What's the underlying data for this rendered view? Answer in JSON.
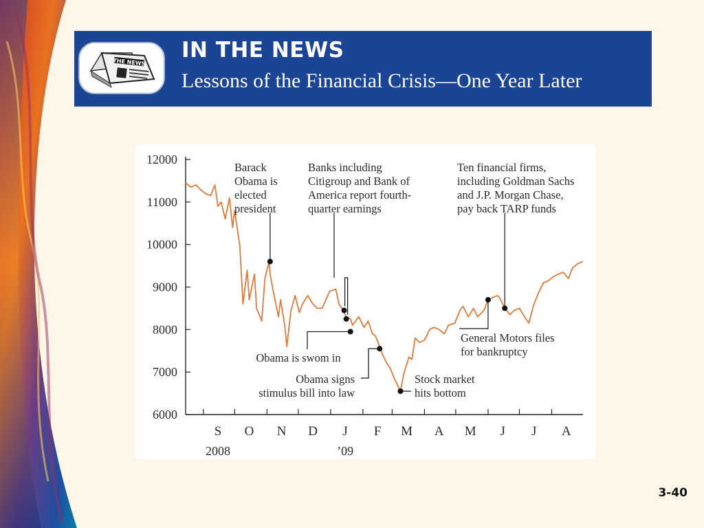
{
  "header": {
    "kicker": "IN THE NEWS",
    "title": "Lessons of the Financial Crisis—One Year Later",
    "icon": "newspaper-icon",
    "icon_text": "THE NEWS"
  },
  "colors": {
    "banner": "#1c4495",
    "series": "#e07a3c",
    "background": "#fdf7e9"
  },
  "slide_number": "3-40",
  "chart_data": {
    "type": "line",
    "title": "",
    "xlabel": "",
    "ylabel": "",
    "ylim": [
      6000,
      12000
    ],
    "y_ticks": [
      6000,
      7000,
      8000,
      9000,
      10000,
      11000,
      12000
    ],
    "y_tick_labels": [
      "6000",
      "7000",
      "8000",
      "9000",
      "10000",
      "11000",
      "12000"
    ],
    "x_range": [
      "2008-08-15",
      "2009-08-31"
    ],
    "month_labels": [
      "S",
      "O",
      "N",
      "D",
      "J",
      "F",
      "M",
      "A",
      "M",
      "J",
      "J",
      "A"
    ],
    "month_dates": [
      "2008-09-15",
      "2008-10-15",
      "2008-11-15",
      "2008-12-15",
      "2009-01-15",
      "2009-02-15",
      "2009-03-15",
      "2009-04-15",
      "2009-05-15",
      "2009-06-15",
      "2009-07-15",
      "2009-08-15"
    ],
    "month_boundaries": [
      "2008-09-01",
      "2008-10-01",
      "2008-11-01",
      "2008-12-01",
      "2009-01-01",
      "2009-02-01",
      "2009-03-01",
      "2009-04-01",
      "2009-05-01",
      "2009-06-01",
      "2009-07-01",
      "2009-08-01",
      "2009-09-01"
    ],
    "year_labels": [
      {
        "text": "2008",
        "date": "2008-09-15"
      },
      {
        "text": "’09",
        "date": "2009-01-15"
      }
    ],
    "grid": false,
    "legend": "none",
    "series": [
      {
        "x": [
          "2008-08-15",
          "2008-08-20",
          "2008-08-25",
          "2008-08-29",
          "2008-09-03",
          "2008-09-08",
          "2008-09-12",
          "2008-09-15",
          "2008-09-18",
          "2008-09-22",
          "2008-09-26",
          "2008-09-29",
          "2008-10-01",
          "2008-10-06",
          "2008-10-09",
          "2008-10-13",
          "2008-10-15",
          "2008-10-20",
          "2008-10-22",
          "2008-10-27",
          "2008-10-30",
          "2008-11-03",
          "2008-11-04",
          "2008-11-07",
          "2008-11-12",
          "2008-11-14",
          "2008-11-18",
          "2008-11-20",
          "2008-11-24",
          "2008-11-28",
          "2008-12-02",
          "2008-12-05",
          "2008-12-10",
          "2008-12-15",
          "2008-12-19",
          "2008-12-24",
          "2008-12-31",
          "2009-01-06",
          "2009-01-09",
          "2009-01-13",
          "2009-01-16",
          "2009-01-20",
          "2009-01-22",
          "2009-01-28",
          "2009-02-02",
          "2009-02-06",
          "2009-02-10",
          "2009-02-13",
          "2009-02-17",
          "2009-02-20",
          "2009-02-24",
          "2009-02-27",
          "2009-03-03",
          "2009-03-06",
          "2009-03-09",
          "2009-03-12",
          "2009-03-17",
          "2009-03-20",
          "2009-03-23",
          "2009-03-27",
          "2009-04-01",
          "2009-04-06",
          "2009-04-10",
          "2009-04-15",
          "2009-04-20",
          "2009-04-24",
          "2009-04-30",
          "2009-05-05",
          "2009-05-08",
          "2009-05-13",
          "2009-05-18",
          "2009-05-22",
          "2009-05-28",
          "2009-06-01",
          "2009-06-05",
          "2009-06-10",
          "2009-06-12",
          "2009-06-17",
          "2009-06-22",
          "2009-06-26",
          "2009-07-01",
          "2009-07-06",
          "2009-07-10",
          "2009-07-15",
          "2009-07-20",
          "2009-07-24",
          "2009-07-29",
          "2009-08-03",
          "2009-08-07",
          "2009-08-12",
          "2009-08-17",
          "2009-08-21",
          "2009-08-26",
          "2009-08-31"
        ],
        "y": [
          11450,
          11350,
          11400,
          11300,
          11200,
          11150,
          11400,
          10900,
          11000,
          10600,
          11100,
          10400,
          10800,
          9950,
          8600,
          9400,
          8700,
          9300,
          8500,
          8200,
          9200,
          9600,
          9300,
          8900,
          8300,
          8700,
          8100,
          7600,
          8450,
          8800,
          8400,
          8600,
          8800,
          8600,
          8500,
          8500,
          8900,
          8950,
          8600,
          8450,
          8300,
          8250,
          8100,
          8300,
          8050,
          8200,
          7900,
          7850,
          7600,
          7400,
          7200,
          7100,
          6850,
          6700,
          6550,
          6950,
          7350,
          7300,
          7800,
          7700,
          7750,
          8000,
          8050,
          8000,
          7900,
          8100,
          8150,
          8450,
          8550,
          8300,
          8500,
          8300,
          8450,
          8700,
          8750,
          8800,
          8750,
          8500,
          8350,
          8450,
          8500,
          8300,
          8150,
          8600,
          8900,
          9100,
          9150,
          9250,
          9300,
          9350,
          9200,
          9450,
          9550,
          9600
        ]
      }
    ],
    "annotations": [
      {
        "text": [
          "Barack",
          "Obama is",
          "elected",
          "president"
        ],
        "date": "2008-11-04",
        "value": 9600
      },
      {
        "text": [
          "Banks including",
          "Citigroup and Bank of",
          "America report fourth-",
          "quarter earnings"
        ],
        "dates": [
          "2009-01-14",
          "2009-01-16"
        ],
        "values": [
          8450,
          8250
        ]
      },
      {
        "text": [
          "Obama is swom in"
        ],
        "date": "2009-01-20",
        "value": 7950
      },
      {
        "text": [
          "Obama signs",
          "stimulus bill into law"
        ],
        "date": "2009-02-17",
        "value": 7550
      },
      {
        "text": [
          "Stock market",
          "hits bottom"
        ],
        "date": "2009-03-09",
        "value": 6550
      },
      {
        "text": [
          "General Motors files",
          "for bankruptcy"
        ],
        "date": "2009-06-01",
        "value": 8700
      },
      {
        "text": [
          "Ten financial firms,",
          "including Goldman Sachs",
          "and J.P. Morgan Chase,",
          "pay back TARP funds"
        ],
        "date": "2009-06-17",
        "value": 8500
      }
    ]
  }
}
